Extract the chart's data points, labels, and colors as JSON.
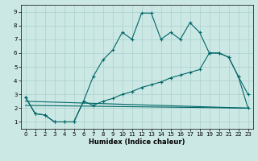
{
  "xlabel": "Humidex (Indice chaleur)",
  "xlim": [
    -0.5,
    23.5
  ],
  "ylim": [
    0.5,
    9.5
  ],
  "xticks": [
    0,
    1,
    2,
    3,
    4,
    5,
    6,
    7,
    8,
    9,
    10,
    11,
    12,
    13,
    14,
    15,
    16,
    17,
    18,
    19,
    20,
    21,
    22,
    23
  ],
  "yticks": [
    1,
    2,
    3,
    4,
    5,
    6,
    7,
    8,
    9
  ],
  "bg_color": "#cce8e5",
  "grid_color": "#aacfcc",
  "line_color": "#006666",
  "line1_x": [
    0,
    1,
    2,
    3,
    4,
    5,
    6,
    7,
    8,
    9,
    10,
    11,
    12,
    13,
    14,
    15,
    16,
    17,
    18,
    19,
    20,
    21,
    22,
    23
  ],
  "line1_y": [
    2.8,
    1.6,
    1.5,
    1.0,
    1.0,
    1.0,
    2.5,
    4.3,
    5.5,
    6.2,
    7.5,
    7.0,
    8.9,
    8.9,
    7.0,
    7.5,
    7.0,
    8.2,
    7.5,
    6.0,
    6.0,
    5.7,
    4.3,
    3.0
  ],
  "line2_x": [
    0,
    1,
    2,
    3,
    4,
    5,
    6,
    7,
    8,
    9,
    10,
    11,
    12,
    13,
    14,
    15,
    16,
    17,
    18,
    19,
    20,
    21,
    22,
    23
  ],
  "line2_y": [
    2.8,
    1.6,
    1.5,
    1.0,
    1.0,
    1.0,
    2.5,
    2.2,
    2.5,
    2.7,
    3.0,
    3.2,
    3.5,
    3.7,
    3.9,
    4.2,
    4.4,
    4.6,
    4.8,
    6.0,
    6.0,
    5.7,
    4.3,
    2.0
  ],
  "line3_x": [
    0,
    23
  ],
  "line3_y": [
    2.5,
    2.0
  ],
  "line4_x": [
    0,
    23
  ],
  "line4_y": [
    2.2,
    2.0
  ]
}
